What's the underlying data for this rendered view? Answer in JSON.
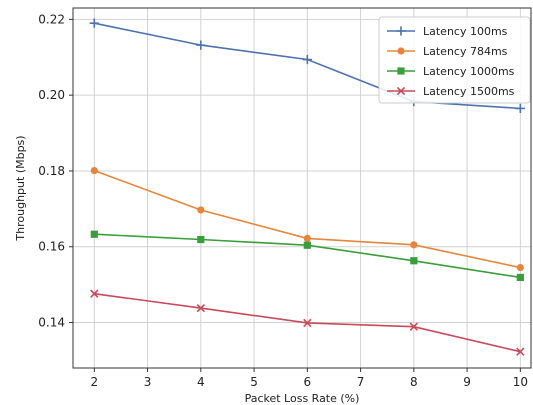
{
  "chart_data": {
    "type": "line",
    "xlabel": "Packet Loss Rate (%)",
    "ylabel": "Throughput (Mbps)",
    "xlim": [
      1.6,
      10.2
    ],
    "ylim": [
      0.128,
      0.223
    ],
    "xticks": [
      2,
      3,
      4,
      5,
      6,
      7,
      8,
      9,
      10
    ],
    "yticks": [
      0.14,
      0.16,
      0.18,
      0.2,
      0.22
    ],
    "ytick_labels": [
      "0.14",
      "0.16",
      "0.18",
      "0.20",
      "0.22"
    ],
    "grid": true,
    "legend_position": "top-right",
    "series": [
      {
        "name": "Latency 100ms",
        "color": "#4c72b0",
        "marker": "plus",
        "x": [
          2,
          4,
          6,
          8,
          10
        ],
        "y": [
          0.219,
          0.2132,
          0.2094,
          0.1983,
          0.1965
        ]
      },
      {
        "name": "Latency 784ms",
        "color": "#e8853a",
        "marker": "circle",
        "x": [
          2,
          4,
          6,
          8,
          10
        ],
        "y": [
          0.1801,
          0.1697,
          0.1622,
          0.1605,
          0.1545
        ]
      },
      {
        "name": "Latency 1000ms",
        "color": "#3a9e3a",
        "marker": "square",
        "x": [
          2,
          4,
          6,
          8,
          10
        ],
        "y": [
          0.1633,
          0.1619,
          0.1604,
          0.1563,
          0.1519
        ]
      },
      {
        "name": "Latency 1500ms",
        "color": "#c94a5a",
        "marker": "x",
        "x": [
          2,
          4,
          6,
          8,
          10
        ],
        "y": [
          0.1476,
          0.1438,
          0.1399,
          0.1389,
          0.1323
        ]
      }
    ]
  }
}
